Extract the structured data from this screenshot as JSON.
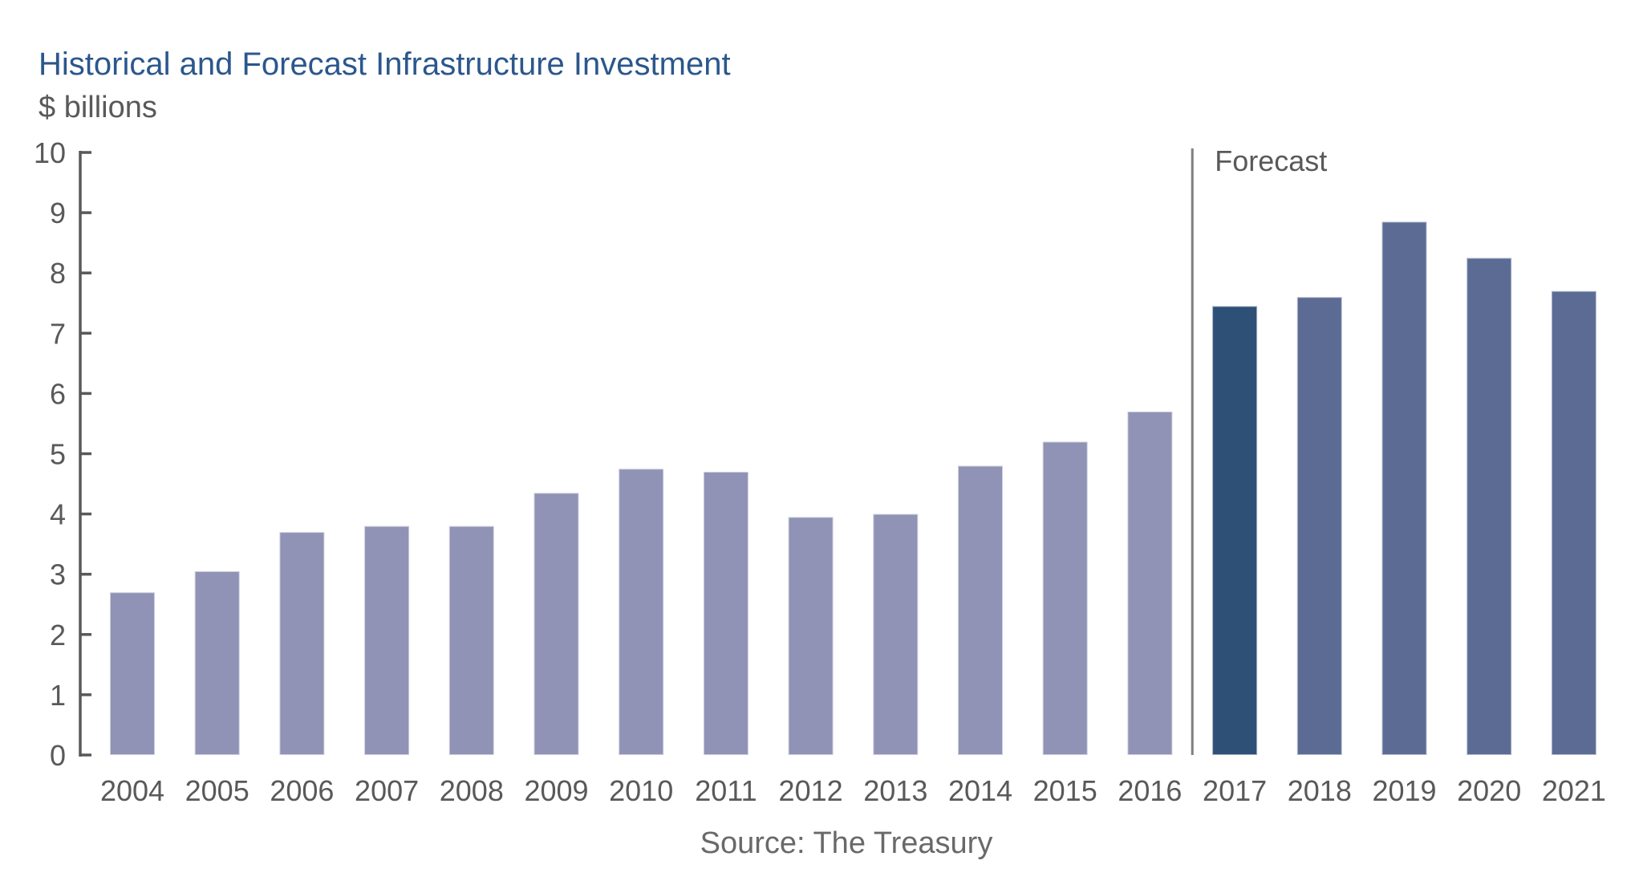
{
  "chart_data": {
    "type": "bar",
    "title": "Historical and Forecast Infrastructure Investment",
    "units_label": "$ billions",
    "source": "Source: The Treasury",
    "divider_label": "Forecast",
    "categories": [
      "2004",
      "2005",
      "2006",
      "2007",
      "2008",
      "2009",
      "2010",
      "2011",
      "2012",
      "2013",
      "2014",
      "2015",
      "2016",
      "2017",
      "2018",
      "2019",
      "2020",
      "2021"
    ],
    "values": [
      2.7,
      3.05,
      3.7,
      3.8,
      3.8,
      4.35,
      4.75,
      4.7,
      3.95,
      4.0,
      4.8,
      5.2,
      5.7,
      7.45,
      7.6,
      8.85,
      8.25,
      7.7
    ],
    "bar_groups": [
      "historical",
      "historical",
      "historical",
      "historical",
      "historical",
      "historical",
      "historical",
      "historical",
      "historical",
      "historical",
      "historical",
      "historical",
      "historical",
      "forecast_current",
      "forecast",
      "forecast",
      "forecast",
      "forecast"
    ],
    "divider_after_index": 12,
    "ylim": [
      0,
      10
    ],
    "ytick_step": 1,
    "grid": false,
    "legend": "none",
    "colors": {
      "historical_bar": "#9093b5",
      "forecast_current_bar": "#2e5077",
      "forecast_bar": "#5b6b94",
      "bar_outline": "rgba(255,255,255,0.55)",
      "title_text": "#2b578c",
      "axis_text": "#595959",
      "axis_line": "#595959",
      "divider_line": "#7f7f7f",
      "source_text": "#696969"
    }
  }
}
